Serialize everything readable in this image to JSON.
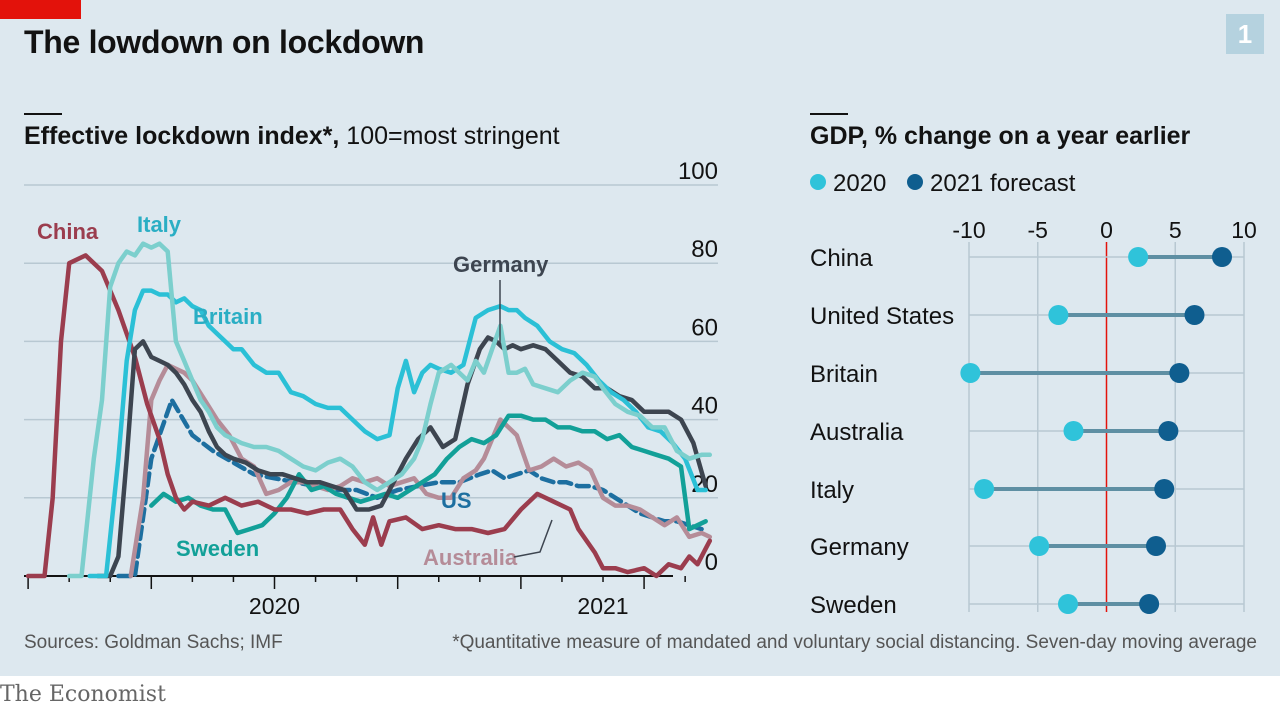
{
  "header": {
    "title": "The lowdown on lockdown",
    "chart_number": "1"
  },
  "left_chart": {
    "title_bold": "Effective lockdown index*,",
    "title_rest": " 100=most stringent"
  },
  "right_chart": {
    "title": "GDP, % change on a year earlier",
    "legend_2020": "2020",
    "legend_2021": "2021 forecast"
  },
  "footer": {
    "sources": "Sources: Goldman Sachs; IMF",
    "footnote": "*Quantitative measure of mandated and voluntary social distancing. Seven-day moving average",
    "brand": "The Economist"
  },
  "colors": {
    "background": "#dde8ef",
    "red": "#e3120b",
    "China": "#9b3d4e",
    "Italy": "#36bdd2",
    "Britain": "#2bc0d6",
    "Germany": "#3d4550",
    "Sweden": "#12a098",
    "US": "#1d6fa0",
    "Australia": "#b58c98",
    "dot2020": "#2fc3da",
    "dot2021": "#0f5e8f",
    "connector": "#5e8fa3"
  },
  "chart_data": [
    {
      "type": "line",
      "title": "Effective lockdown index*, 100=most stringent",
      "ylim": [
        0,
        100
      ],
      "yticks": [
        0,
        20,
        40,
        60,
        80,
        100
      ],
      "x_labels": [
        "2020",
        "2021"
      ],
      "x_unit": "months since Jan 2020",
      "xlim": [
        -0.1,
        16.8
      ],
      "x_year_label_positions": [
        6.0,
        14.0
      ],
      "series": [
        {
          "name": "China",
          "x": [
            0,
            0.4,
            0.6,
            0.8,
            1.0,
            1.4,
            1.8,
            2.2,
            2.6,
            2.9,
            3.2,
            3.4,
            3.6,
            3.8,
            4.0,
            4.4,
            4.8,
            5.2,
            5.6,
            6.0,
            6.4,
            6.8,
            7.2,
            7.6,
            7.9,
            8.2,
            8.4,
            8.6,
            8.8,
            9.2,
            9.6,
            10.0,
            10.4,
            10.8,
            11.2,
            11.6,
            12.0,
            12.4,
            12.8,
            13.2,
            13.4,
            13.6,
            13.8,
            14.0,
            14.3,
            14.6,
            15.0,
            15.3,
            15.6,
            15.9,
            16.1,
            16.3,
            16.5,
            16.6
          ],
          "y": [
            0,
            0,
            20,
            60,
            80,
            82,
            78,
            68,
            56,
            44,
            35,
            26,
            20,
            17,
            19,
            18,
            20,
            18,
            19,
            17,
            17,
            16,
            17,
            17,
            12,
            8,
            15,
            8,
            14,
            15,
            12,
            13,
            12,
            12,
            11,
            12,
            17,
            21,
            19,
            17,
            12,
            9,
            6,
            2,
            2,
            1,
            2,
            0,
            3,
            2,
            5,
            3,
            7,
            9
          ]
        },
        {
          "name": "Italy",
          "x": [
            1.0,
            1.3,
            1.6,
            1.8,
            2.0,
            2.2,
            2.4,
            2.6,
            2.8,
            3.0,
            3.2,
            3.4,
            3.6,
            3.8,
            4.0,
            4.2,
            4.4,
            4.6,
            4.8,
            5.0,
            5.2,
            5.5,
            5.8,
            6.1,
            6.4,
            6.7,
            7.0,
            7.3,
            7.6,
            7.9,
            8.2,
            8.5,
            8.8,
            9.1,
            9.4,
            9.6,
            9.8,
            10.0,
            10.3,
            10.5,
            10.7,
            10.9,
            11.1,
            11.3,
            11.5,
            11.7,
            11.9,
            12.1,
            12.3,
            12.6,
            12.9,
            13.2,
            13.5,
            13.8,
            14.0,
            14.3,
            14.6,
            14.9,
            15.2,
            15.5,
            15.8,
            16.1,
            16.4,
            16.6
          ],
          "y": [
            0,
            0,
            30,
            45,
            74,
            80,
            83,
            82,
            85,
            84,
            85,
            83,
            60,
            55,
            50,
            45,
            42,
            38,
            36,
            35,
            34,
            33,
            33,
            32,
            30,
            28,
            27,
            29,
            30,
            28,
            24,
            22,
            24,
            26,
            30,
            35,
            44,
            52,
            54,
            52,
            50,
            55,
            52,
            58,
            64,
            52,
            52,
            53,
            49,
            48,
            47,
            50,
            52,
            51,
            48,
            44,
            42,
            41,
            38,
            38,
            32,
            30,
            31,
            31
          ]
        },
        {
          "name": "Britain",
          "x": [
            1.5,
            1.9,
            2.2,
            2.4,
            2.6,
            2.8,
            3.0,
            3.2,
            3.4,
            3.6,
            3.8,
            4.0,
            4.2,
            4.4,
            4.6,
            4.8,
            5.0,
            5.2,
            5.5,
            5.8,
            6.1,
            6.4,
            6.7,
            7.0,
            7.3,
            7.6,
            7.9,
            8.2,
            8.5,
            8.8,
            9.0,
            9.2,
            9.4,
            9.6,
            9.8,
            10.0,
            10.3,
            10.6,
            10.9,
            11.2,
            11.5,
            11.7,
            11.9,
            12.1,
            12.4,
            12.7,
            13.0,
            13.3,
            13.6,
            13.9,
            14.2,
            14.5,
            14.8,
            15.1,
            15.4,
            15.7,
            16.0,
            16.3,
            16.5
          ],
          "y": [
            0,
            0,
            30,
            55,
            68,
            73,
            73,
            72,
            72,
            70,
            71,
            69,
            68,
            64,
            62,
            60,
            58,
            58,
            54,
            52,
            52,
            47,
            46,
            44,
            43,
            43,
            40,
            37,
            35,
            36,
            48,
            55,
            47,
            52,
            54,
            53,
            52,
            54,
            66,
            68,
            69,
            68,
            68,
            66,
            64,
            60,
            58,
            57,
            54,
            50,
            47,
            45,
            42,
            38,
            37,
            34,
            30,
            22,
            22
          ]
        },
        {
          "name": "Germany",
          "x": [
            1.7,
            2.0,
            2.2,
            2.4,
            2.6,
            2.8,
            3.0,
            3.2,
            3.4,
            3.6,
            3.8,
            4.0,
            4.2,
            4.4,
            4.6,
            4.8,
            5.0,
            5.3,
            5.6,
            5.9,
            6.2,
            6.5,
            6.8,
            7.1,
            7.4,
            7.7,
            8.0,
            8.3,
            8.6,
            8.9,
            9.2,
            9.5,
            9.8,
            10.1,
            10.4,
            10.7,
            11.0,
            11.2,
            11.4,
            11.6,
            11.8,
            12.0,
            12.3,
            12.6,
            12.9,
            13.2,
            13.5,
            13.8,
            14.1,
            14.4,
            14.7,
            15.0,
            15.3,
            15.6,
            15.9,
            16.2,
            16.5
          ],
          "y": [
            0,
            0,
            5,
            30,
            58,
            60,
            56,
            55,
            54,
            52,
            49,
            45,
            42,
            37,
            33,
            31,
            30,
            29,
            27,
            26,
            26,
            25,
            24,
            24,
            23,
            22,
            17,
            17,
            18,
            24,
            30,
            35,
            38,
            33,
            35,
            49,
            58,
            61,
            60,
            58,
            59,
            58,
            59,
            58,
            55,
            52,
            51,
            48,
            48,
            46,
            45,
            42,
            42,
            42,
            40,
            34,
            23
          ]
        },
        {
          "name": "Sweden",
          "x": [
            3.0,
            3.3,
            3.6,
            3.9,
            4.2,
            4.5,
            4.8,
            5.1,
            5.4,
            5.7,
            6.0,
            6.3,
            6.6,
            6.9,
            7.2,
            7.5,
            7.8,
            8.1,
            8.4,
            8.7,
            9.0,
            9.3,
            9.6,
            9.9,
            10.2,
            10.5,
            10.8,
            11.1,
            11.4,
            11.7,
            12.0,
            12.3,
            12.6,
            12.9,
            13.2,
            13.5,
            13.8,
            14.1,
            14.4,
            14.7,
            15.0,
            15.3,
            15.6,
            15.9,
            16.1,
            16.3,
            16.5
          ],
          "y": [
            18,
            21,
            19,
            20,
            18,
            17,
            17,
            11,
            12,
            13,
            16,
            20,
            26,
            22,
            23,
            21,
            20,
            19,
            20,
            21,
            20,
            22,
            24,
            26,
            30,
            33,
            35,
            34,
            36,
            41,
            41,
            40,
            40,
            38,
            38,
            37,
            37,
            35,
            36,
            33,
            32,
            31,
            30,
            28,
            12,
            13,
            14
          ]
        },
        {
          "name": "US",
          "x": [
            2.2,
            2.6,
            3.0,
            3.5,
            4.0,
            4.5,
            5.0,
            5.5,
            6.0,
            6.5,
            7.0,
            7.5,
            8.0,
            8.5,
            9.0,
            9.5,
            10.0,
            10.5,
            11.0,
            11.3,
            11.6,
            11.9,
            12.2,
            12.5,
            12.8,
            13.1,
            13.4,
            13.7,
            14.0,
            14.3,
            14.6,
            14.9,
            15.2,
            15.5,
            15.8,
            16.1,
            16.4
          ],
          "y": [
            0,
            0,
            30,
            45,
            36,
            32,
            29,
            26,
            25,
            24,
            23,
            22,
            22,
            20,
            22,
            23,
            24,
            24,
            26,
            27,
            25,
            26,
            27,
            25,
            24,
            24,
            23,
            23,
            22,
            20,
            18,
            16,
            15,
            14,
            14,
            13,
            12
          ]
        },
        {
          "name": "Australia",
          "x": [
            2.5,
            2.8,
            3.0,
            3.2,
            3.4,
            3.6,
            3.8,
            4.0,
            4.3,
            4.6,
            4.9,
            5.2,
            5.5,
            5.8,
            6.1,
            6.4,
            6.7,
            7.0,
            7.3,
            7.6,
            7.9,
            8.2,
            8.5,
            8.8,
            9.1,
            9.4,
            9.7,
            10.0,
            10.3,
            10.6,
            10.9,
            11.1,
            11.3,
            11.5,
            11.7,
            11.9,
            12.2,
            12.5,
            12.8,
            13.1,
            13.4,
            13.7,
            14.0,
            14.3,
            14.6,
            14.9,
            15.2,
            15.5,
            15.8,
            16.1,
            16.4,
            16.6
          ],
          "y": [
            0,
            20,
            45,
            50,
            54,
            53,
            52,
            50,
            45,
            40,
            36,
            30,
            28,
            21,
            22,
            24,
            24,
            23,
            22,
            23,
            25,
            24,
            25,
            23,
            24,
            25,
            21,
            20,
            20,
            25,
            27,
            30,
            35,
            40,
            38,
            36,
            27,
            28,
            30,
            28,
            29,
            27,
            20,
            18,
            18,
            17,
            15,
            13,
            15,
            10,
            11,
            10
          ]
        }
      ],
      "labels": [
        "China",
        "Italy",
        "Britain",
        "Germany",
        "Sweden",
        "US",
        "Australia"
      ]
    },
    {
      "type": "dumbbell",
      "title": "GDP, % change on a year earlier",
      "xlim": [
        -10,
        10
      ],
      "xticks": [
        -10,
        -5,
        0,
        5,
        10
      ],
      "tick_labels": [
        "-10",
        "-5",
        "0",
        "5",
        "10"
      ],
      "legend": [
        "2020",
        "2021 forecast"
      ],
      "categories": [
        "China",
        "United States",
        "Britain",
        "Australia",
        "Italy",
        "Germany",
        "Sweden"
      ],
      "series": [
        {
          "name": "2020",
          "values": [
            2.3,
            -3.5,
            -9.9,
            -2.4,
            -8.9,
            -4.9,
            -2.8
          ]
        },
        {
          "name": "2021 forecast",
          "values": [
            8.4,
            6.4,
            5.3,
            4.5,
            4.2,
            3.6,
            3.1
          ]
        }
      ]
    }
  ]
}
